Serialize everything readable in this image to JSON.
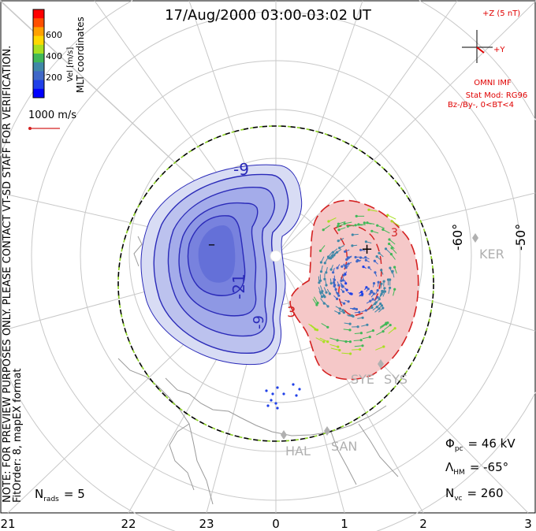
{
  "title": "17/Aug/2000 03:00-03:02 UT",
  "colorbar": {
    "ticks": [
      "600",
      "400",
      "200"
    ],
    "label": "Vel [m/s]",
    "colors": [
      "#ff0000",
      "#ff4f00",
      "#ffa000",
      "#ffd800",
      "#a8e020",
      "#40b858",
      "#4088a8",
      "#4068c8",
      "#2040e8",
      "#0000ff"
    ]
  },
  "coords_label": "MLT coordinates",
  "scale_label": "1000 m/s",
  "side_note_1": "NOTE: FOR PREVIEW PURPOSES ONLY. PLEASE CONTACT VT-SD STAFF FOR VERIFICATION.",
  "side_note_2": "FitOrder: 8, mapEX format",
  "imf": {
    "z_label": "+Z (5 nT)",
    "y_label": "+Y",
    "source": "OMNI IMF",
    "stat_mod": "Stat Mod: RG96",
    "conditions": "Bz-/By-, 0<BT<4",
    "color": "#e00000"
  },
  "contours": {
    "neg1": "-9",
    "neg2": "-21",
    "neg3": "-9",
    "min_mark": "–",
    "pos1": "3",
    "pos2": "3",
    "max_mark": "+"
  },
  "lat_labels": [
    "-60°",
    "-50°"
  ],
  "stations": [
    "KER",
    "SYE",
    "SYS",
    "HAL",
    "SAN"
  ],
  "mlt_ticks": [
    "21",
    "22",
    "23",
    "0",
    "1",
    "2",
    "3"
  ],
  "stats": {
    "phi_label": "Φ",
    "phi_sub": "pc",
    "phi_value": "= 46 kV",
    "lambda_label": "Λ",
    "lambda_sub": "HM",
    "lambda_value": "= -65°",
    "nvc_label": "N",
    "nvc_sub": "vc",
    "nvc_value": "= 260",
    "nrads_label": "N",
    "nrads_sub": "rads",
    "nrads_value": "= 5"
  },
  "colors": {
    "neg_cell": "#5060e0",
    "neg_line": "#2a2ab8",
    "pos_fill": "#f5c8c8",
    "pos_line": "#d42020",
    "grid": "#c8c8c8",
    "station": "#b0b0b0"
  }
}
